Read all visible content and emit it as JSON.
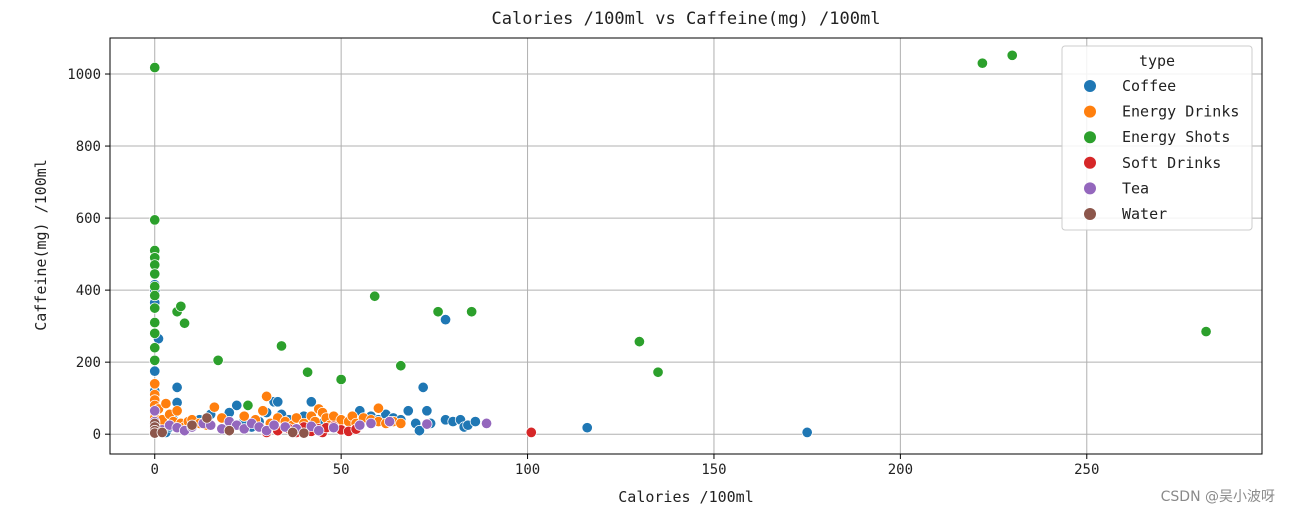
{
  "chart_data": {
    "type": "scatter",
    "title": "Calories /100ml vs Caffeine(mg) /100ml",
    "xlabel": "Calories /100ml",
    "ylabel": "Caffeine(mg) /100ml",
    "xlim": [
      -12,
      297
    ],
    "ylim": [
      -55,
      1100
    ],
    "xticks": [
      0,
      50,
      100,
      150,
      200,
      250
    ],
    "yticks": [
      0,
      200,
      400,
      600,
      800,
      1000
    ],
    "grid": true,
    "legend": {
      "title": "type",
      "placement": "top-right"
    },
    "series": [
      {
        "name": "Coffee",
        "color": "#1f77b4",
        "points": [
          [
            0,
            380
          ],
          [
            0,
            400
          ],
          [
            0,
            415
          ],
          [
            0,
            365
          ],
          [
            0,
            175
          ],
          [
            0,
            120
          ],
          [
            0,
            90
          ],
          [
            0,
            60
          ],
          [
            0,
            30
          ],
          [
            0,
            10
          ],
          [
            0,
            5
          ],
          [
            1,
            265
          ],
          [
            2,
            10
          ],
          [
            3,
            5
          ],
          [
            4,
            20
          ],
          [
            5,
            40
          ],
          [
            6,
            130
          ],
          [
            6,
            88
          ],
          [
            7,
            30
          ],
          [
            8,
            15
          ],
          [
            10,
            25
          ],
          [
            12,
            40
          ],
          [
            14,
            30
          ],
          [
            15,
            55
          ],
          [
            18,
            45
          ],
          [
            20,
            60
          ],
          [
            22,
            80
          ],
          [
            24,
            40
          ],
          [
            26,
            20
          ],
          [
            28,
            35
          ],
          [
            30,
            60
          ],
          [
            32,
            90
          ],
          [
            33,
            90
          ],
          [
            34,
            55
          ],
          [
            36,
            40
          ],
          [
            40,
            50
          ],
          [
            42,
            90
          ],
          [
            45,
            30
          ],
          [
            48,
            45
          ],
          [
            50,
            40
          ],
          [
            55,
            65
          ],
          [
            58,
            50
          ],
          [
            60,
            40
          ],
          [
            62,
            55
          ],
          [
            64,
            45
          ],
          [
            66,
            40
          ],
          [
            68,
            65
          ],
          [
            70,
            30
          ],
          [
            71,
            10
          ],
          [
            72,
            130
          ],
          [
            73,
            65
          ],
          [
            74,
            30
          ],
          [
            78,
            40
          ],
          [
            78,
            318
          ],
          [
            80,
            35
          ],
          [
            82,
            40
          ],
          [
            83,
            20
          ],
          [
            84,
            25
          ],
          [
            86,
            35
          ],
          [
            116,
            18
          ],
          [
            175,
            5
          ]
        ]
      },
      {
        "name": "Energy Drinks",
        "color": "#ff7f0e",
        "points": [
          [
            0,
            140
          ],
          [
            0,
            110
          ],
          [
            0,
            95
          ],
          [
            0,
            80
          ],
          [
            0,
            60
          ],
          [
            0,
            45
          ],
          [
            0,
            30
          ],
          [
            1,
            70
          ],
          [
            2,
            40
          ],
          [
            3,
            85
          ],
          [
            4,
            55
          ],
          [
            5,
            35
          ],
          [
            6,
            65
          ],
          [
            7,
            30
          ],
          [
            8,
            20
          ],
          [
            9,
            35
          ],
          [
            10,
            40
          ],
          [
            12,
            30
          ],
          [
            14,
            25
          ],
          [
            16,
            75
          ],
          [
            18,
            45
          ],
          [
            20,
            30
          ],
          [
            22,
            25
          ],
          [
            24,
            50
          ],
          [
            25,
            80
          ],
          [
            27,
            40
          ],
          [
            29,
            65
          ],
          [
            30,
            105
          ],
          [
            31,
            30
          ],
          [
            33,
            45
          ],
          [
            35,
            35
          ],
          [
            37,
            25
          ],
          [
            38,
            45
          ],
          [
            40,
            30
          ],
          [
            42,
            50
          ],
          [
            43,
            35
          ],
          [
            44,
            70
          ],
          [
            45,
            60
          ],
          [
            46,
            45
          ],
          [
            47,
            25
          ],
          [
            48,
            50
          ],
          [
            50,
            40
          ],
          [
            52,
            35
          ],
          [
            53,
            50
          ],
          [
            54,
            30
          ],
          [
            56,
            45
          ],
          [
            58,
            40
          ],
          [
            60,
            35
          ],
          [
            60,
            72
          ],
          [
            62,
            30
          ],
          [
            64,
            35
          ],
          [
            66,
            30
          ]
        ]
      },
      {
        "name": "Energy Shots",
        "color": "#2ca02c",
        "points": [
          [
            0,
            1018
          ],
          [
            0,
            595
          ],
          [
            0,
            510
          ],
          [
            0,
            490
          ],
          [
            0,
            470
          ],
          [
            0,
            445
          ],
          [
            0,
            410
          ],
          [
            0,
            385
          ],
          [
            0,
            350
          ],
          [
            0,
            310
          ],
          [
            0,
            280
          ],
          [
            0,
            240
          ],
          [
            0,
            205
          ],
          [
            6,
            340
          ],
          [
            7,
            355
          ],
          [
            8,
            308
          ],
          [
            17,
            205
          ],
          [
            25,
            80
          ],
          [
            34,
            245
          ],
          [
            41,
            172
          ],
          [
            50,
            152
          ],
          [
            59,
            383
          ],
          [
            66,
            190
          ],
          [
            76,
            340
          ],
          [
            85,
            340
          ],
          [
            130,
            257
          ],
          [
            135,
            172
          ],
          [
            222,
            1030
          ],
          [
            230,
            1052
          ],
          [
            282,
            285
          ]
        ]
      },
      {
        "name": "Soft Drinks",
        "color": "#d62728",
        "points": [
          [
            30,
            5
          ],
          [
            33,
            10
          ],
          [
            36,
            15
          ],
          [
            38,
            5
          ],
          [
            40,
            20
          ],
          [
            42,
            8
          ],
          [
            44,
            15
          ],
          [
            45,
            5
          ],
          [
            46,
            18
          ],
          [
            48,
            22
          ],
          [
            50,
            12
          ],
          [
            52,
            8
          ],
          [
            54,
            14
          ],
          [
            101,
            5
          ]
        ]
      },
      {
        "name": "Tea",
        "color": "#9467bd",
        "points": [
          [
            0,
            65
          ],
          [
            0,
            35
          ],
          [
            0,
            15
          ],
          [
            2,
            12
          ],
          [
            4,
            25
          ],
          [
            6,
            18
          ],
          [
            8,
            10
          ],
          [
            10,
            20
          ],
          [
            13,
            30
          ],
          [
            15,
            25
          ],
          [
            18,
            15
          ],
          [
            20,
            35
          ],
          [
            22,
            25
          ],
          [
            24,
            15
          ],
          [
            26,
            30
          ],
          [
            28,
            20
          ],
          [
            30,
            10
          ],
          [
            32,
            25
          ],
          [
            35,
            20
          ],
          [
            38,
            15
          ],
          [
            42,
            22
          ],
          [
            44,
            10
          ],
          [
            48,
            18
          ],
          [
            55,
            25
          ],
          [
            58,
            30
          ],
          [
            63,
            35
          ],
          [
            73,
            28
          ],
          [
            89,
            30
          ]
        ]
      },
      {
        "name": "Water",
        "color": "#8c564b",
        "points": [
          [
            0,
            30
          ],
          [
            0,
            20
          ],
          [
            0,
            10
          ],
          [
            0,
            3
          ],
          [
            2,
            5
          ],
          [
            10,
            25
          ],
          [
            14,
            45
          ],
          [
            20,
            10
          ],
          [
            37,
            5
          ],
          [
            40,
            3
          ]
        ]
      }
    ]
  },
  "watermark": "CSDN @吴小波呀"
}
